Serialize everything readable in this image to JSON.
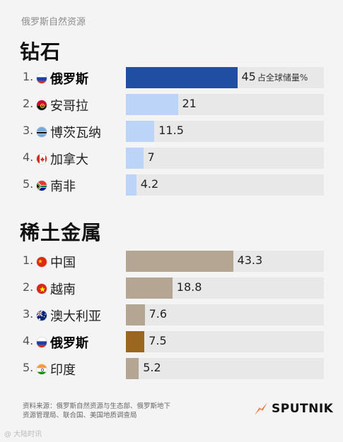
{
  "header": {
    "text": "俄罗斯自然资源"
  },
  "chart_data": [
    {
      "type": "bar",
      "title": "钻石",
      "unit": "占全球储量%",
      "xlim": [
        0,
        80
      ],
      "categories": [
        "俄罗斯",
        "安哥拉",
        "博茨瓦纳",
        "加拿大",
        "南非"
      ],
      "ranks": [
        "1.",
        "2.",
        "3.",
        "4.",
        "5."
      ],
      "values": [
        45,
        21,
        11.5,
        7,
        4.2
      ],
      "value_labels": [
        "45",
        "21",
        "11.5",
        "7",
        "4.2"
      ],
      "highlight": "俄罗斯",
      "flags": [
        "russia-flag-icon",
        "angola-flag-icon",
        "botswana-flag-icon",
        "canada-flag-icon",
        "south-africa-flag-icon"
      ],
      "colors": {
        "highlight": "#1f4ea3",
        "normal": "#bcd4f7",
        "track": "#e8e8e8"
      }
    },
    {
      "type": "bar",
      "title": "稀土金属",
      "xlim": [
        0,
        80
      ],
      "categories": [
        "中国",
        "越南",
        "澳大利亚",
        "俄罗斯",
        "印度"
      ],
      "ranks": [
        "1.",
        "2.",
        "3.",
        "4.",
        "5."
      ],
      "values": [
        43.3,
        18.8,
        7.6,
        7.5,
        5.2
      ],
      "value_labels": [
        "43.3",
        "18.8",
        "7.6",
        "7.5",
        "5.2"
      ],
      "highlight": "俄罗斯",
      "flags": [
        "china-flag-icon",
        "vietnam-flag-icon",
        "australia-flag-icon",
        "russia-flag-icon",
        "india-flag-icon"
      ],
      "colors": {
        "highlight": "#9a6620",
        "normal": "#b5a693",
        "track": "#e8e8e8"
      }
    }
  ],
  "source": {
    "line1": "资料来源：俄罗斯自然资源与生态部、俄罗斯地下",
    "line2": "资源管理局、联合国、美国地质调查局"
  },
  "logo": {
    "text": "SPUTNIK",
    "colors": {
      "mark": "#f26522"
    }
  },
  "watermark": {
    "text": "@ 大陆时讯"
  }
}
